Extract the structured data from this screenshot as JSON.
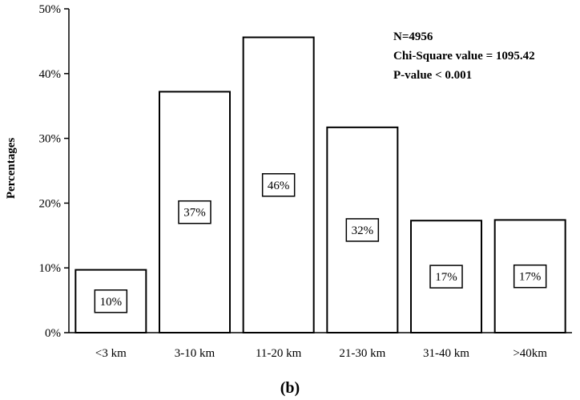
{
  "chart_data": {
    "type": "bar",
    "categories": [
      "<3 km",
      "3-10 km",
      "11-20 km",
      "21-30 km",
      "31-40 km",
      ">40km"
    ],
    "values": [
      9.7,
      37.2,
      45.6,
      31.7,
      17.3,
      17.4
    ],
    "data_labels": [
      "10%",
      "37%",
      "46%",
      "32%",
      "17%",
      "17%"
    ],
    "ylabel": "Percentages",
    "ylim": [
      0,
      50
    ],
    "y_ticks": [
      0,
      10,
      20,
      30,
      40,
      50
    ],
    "y_tick_labels": [
      "0%",
      "10%",
      "20%",
      "30%",
      "40%",
      "50%"
    ],
    "grid": false,
    "legend": "none",
    "bar_fill": "#ffffff",
    "bar_stroke": "#000000",
    "stats": {
      "n": "N=4956",
      "chi_square": "Chi-Square value = 1095.42",
      "p_value": "P-value < 0.001"
    },
    "panel_label": "(b)"
  }
}
